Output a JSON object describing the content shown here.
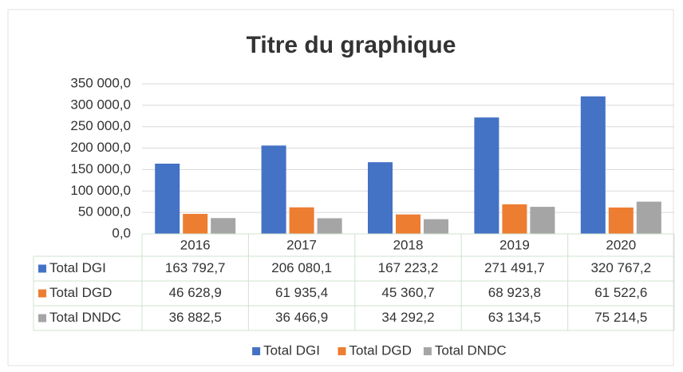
{
  "chart_data": {
    "type": "bar",
    "title": "Titre du graphique",
    "categories": [
      "2016",
      "2017",
      "2018",
      "2019",
      "2020"
    ],
    "series": [
      {
        "name": "Total DGI",
        "color": "#4472c4",
        "values": [
          163792.7,
          206080.1,
          167223.2,
          271491.7,
          320767.2
        ],
        "value_labels": [
          "163 792,7",
          "206 080,1",
          "167 223,2",
          "271 491,7",
          "320 767,2"
        ]
      },
      {
        "name": "Total DGD",
        "color": "#ed7d31",
        "values": [
          46628.9,
          61935.4,
          45360.7,
          68923.8,
          61522.6
        ],
        "value_labels": [
          "46 628,9",
          "61 935,4",
          "45 360,7",
          "68 923,8",
          "61 522,6"
        ]
      },
      {
        "name": "Total DNDC",
        "color": "#a5a5a5",
        "values": [
          36882.5,
          36466.9,
          34292.2,
          63134.5,
          75214.5
        ],
        "value_labels": [
          "36 882,5",
          "36 466,9",
          "34 292,2",
          "63 134,5",
          "75 214,5"
        ]
      }
    ],
    "ylim": [
      0,
      350000
    ],
    "yticks": [
      {
        "value": 0,
        "label": "0,0"
      },
      {
        "value": 50000,
        "label": "50 000,0"
      },
      {
        "value": 100000,
        "label": "100 000,0"
      },
      {
        "value": 150000,
        "label": "150 000,0"
      },
      {
        "value": 200000,
        "label": "200 000,0"
      },
      {
        "value": 250000,
        "label": "250 000,0"
      },
      {
        "value": 300000,
        "label": "300 000,0"
      },
      {
        "value": 350000,
        "label": "350 000,0"
      }
    ],
    "grid": true,
    "legend": "bottom"
  }
}
